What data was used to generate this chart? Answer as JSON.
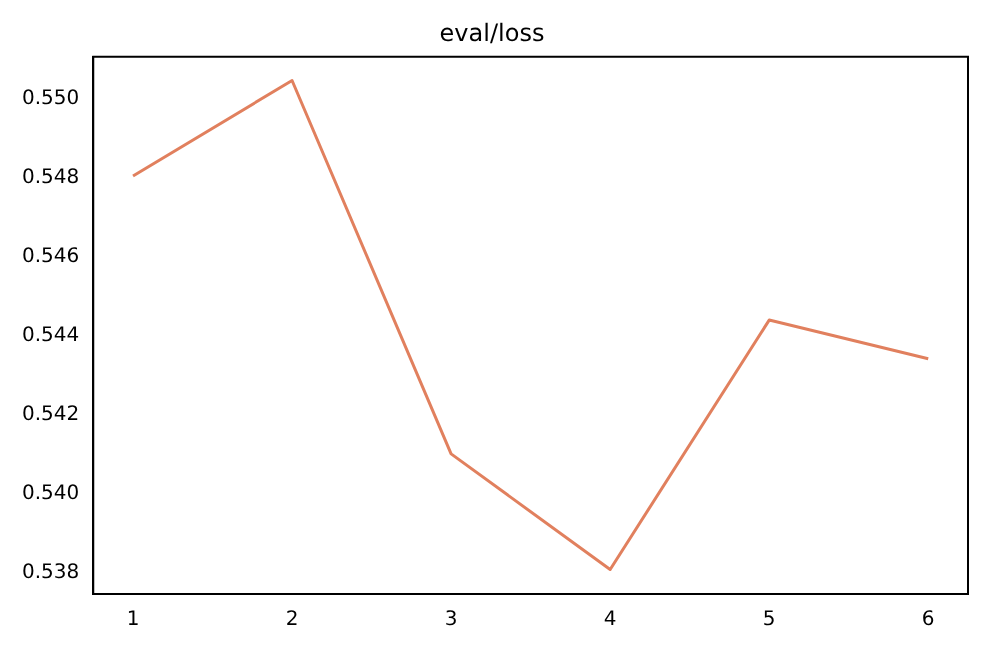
{
  "chart_data": {
    "type": "line",
    "title": "eval/loss",
    "x": [
      1,
      2,
      3,
      4,
      5,
      6
    ],
    "series": [
      {
        "color": "#e1805e",
        "values": [
          0.54805,
          0.55047,
          0.54101,
          0.53808,
          0.5444,
          0.54342
        ]
      }
    ],
    "xlim": [
      0.75,
      6.25
    ],
    "xticks": [
      1,
      2,
      3,
      4,
      5,
      6
    ],
    "ylim": [
      0.53746,
      0.55107
    ],
    "yticks": [
      {
        "value": 0.538,
        "label": "0.538"
      },
      {
        "value": 0.54,
        "label": "0.540"
      },
      {
        "value": 0.542,
        "label": "0.542"
      },
      {
        "value": 0.544,
        "label": "0.544"
      },
      {
        "value": 0.546,
        "label": "0.546"
      },
      {
        "value": 0.548,
        "label": "0.548"
      },
      {
        "value": 0.55,
        "label": "0.550"
      }
    ],
    "grid": false,
    "legend": false,
    "marker": "none",
    "line_style": "solid"
  }
}
